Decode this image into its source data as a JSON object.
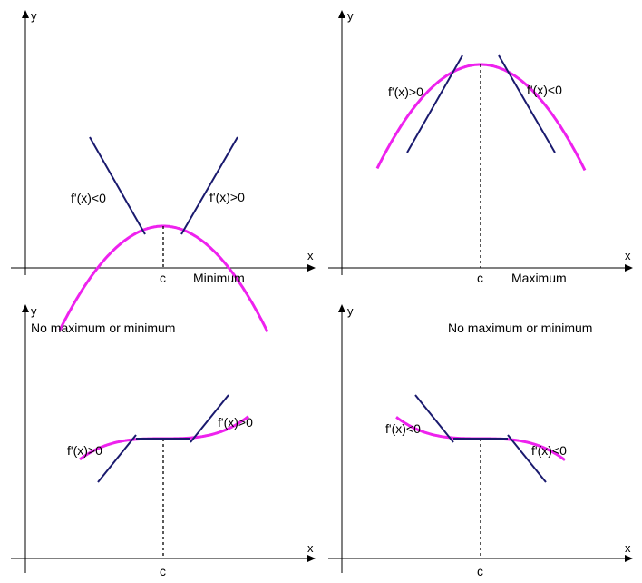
{
  "colors": {
    "background": "#ffffff",
    "curve": "#ee22ee",
    "tangent": "#1a1a6e",
    "axis": "#000000"
  },
  "panels": [
    {
      "id": "minimum",
      "y_label": "y",
      "x_label": "x",
      "c_label": "c",
      "title": "Minimum",
      "tangent_labels": [
        "f'(x)<0",
        "f'(x)>0"
      ]
    },
    {
      "id": "maximum",
      "y_label": "y",
      "x_label": "x",
      "c_label": "c",
      "title": "Maximum",
      "tangent_labels": [
        "f'(x)>0",
        "f'(x)<0"
      ]
    },
    {
      "id": "inflection-increasing",
      "y_label": "y",
      "x_label": "x",
      "c_label": "c",
      "title": "No maximum or minimum",
      "tangent_labels": [
        "f'(x)>0",
        "f'(x)>0"
      ]
    },
    {
      "id": "inflection-decreasing",
      "y_label": "y",
      "x_label": "x",
      "c_label": "c",
      "title": "No maximum or minimum",
      "tangent_labels": [
        "f'(x)<0",
        "f'(x)<0"
      ]
    }
  ]
}
